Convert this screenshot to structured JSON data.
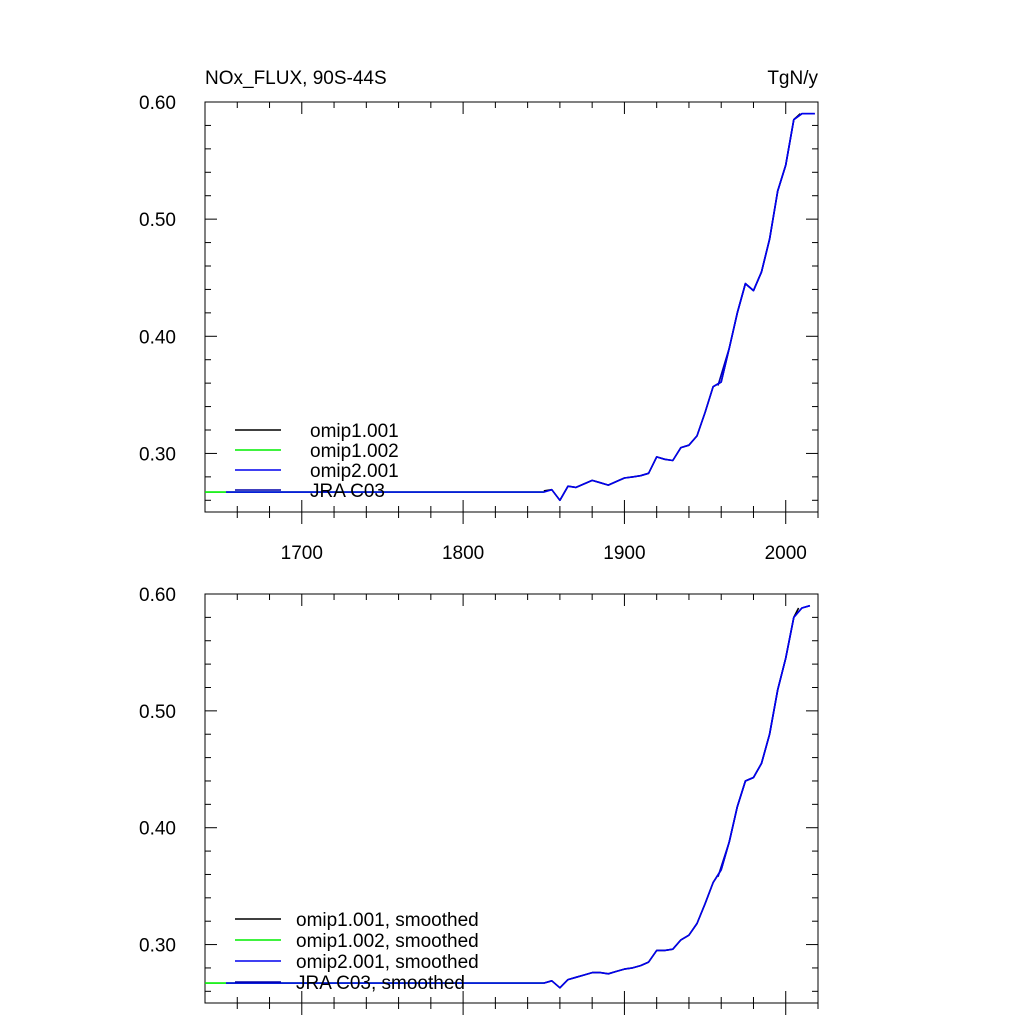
{
  "header": {
    "title": "NOx_FLUX, 90S-44S",
    "units": "TgN/y"
  },
  "colors": {
    "omip1_001": "#000000",
    "omip1_002": "#00ee00",
    "omip2_001": "#0000ee",
    "jra_c03": "#0000aa"
  },
  "chart_data": [
    {
      "type": "line",
      "panel": "top",
      "title": "NOx_FLUX, 90S-44S",
      "units_label": "TgN/y",
      "xlabel": "",
      "ylabel": "",
      "xlim": [
        1640,
        2020
      ],
      "ylim": [
        0.25,
        0.6
      ],
      "x_ticks": [
        1700,
        1800,
        1900,
        2000
      ],
      "x_tick_labels": [
        "1700",
        "1800",
        "1900",
        "2000"
      ],
      "y_ticks": [
        0.3,
        0.4,
        0.5,
        0.6
      ],
      "y_tick_labels": [
        "0.30",
        "0.40",
        "0.50",
        "0.60"
      ],
      "grid": false,
      "legend_position": "bottom-left",
      "series": [
        {
          "name": "omip1.001",
          "color": "#000000",
          "x": [
            1850,
            1855,
            1860,
            1865,
            1870,
            1875,
            1880,
            1885,
            1890,
            1895,
            1900,
            1905,
            1910,
            1915,
            1920,
            1925,
            1930,
            1935,
            1940,
            1945,
            1950,
            1955,
            1960,
            1965,
            1970,
            1975,
            1980,
            1985,
            1990,
            1995,
            2000,
            2005,
            2009
          ],
          "y": [
            0.268,
            0.269,
            0.26,
            0.272,
            0.271,
            0.274,
            0.277,
            0.275,
            0.273,
            0.276,
            0.279,
            0.28,
            0.281,
            0.283,
            0.297,
            0.295,
            0.294,
            0.305,
            0.307,
            0.315,
            0.335,
            0.357,
            0.361,
            0.39,
            0.42,
            0.445,
            0.439,
            0.455,
            0.483,
            0.524,
            0.546,
            0.585,
            0.59
          ]
        },
        {
          "name": "omip1.002",
          "color": "#00ee00",
          "x": [
            1640,
            1650,
            1660,
            1680,
            1700,
            1750,
            1800,
            1850
          ],
          "y": [
            0.267,
            0.267,
            0.267,
            0.267,
            0.267,
            0.267,
            0.267,
            0.267
          ]
        },
        {
          "name": "omip2.001",
          "color": "#0000ee",
          "x": [
            1653,
            1700,
            1750,
            1800,
            1850,
            1855,
            1860,
            1865,
            1870,
            1875,
            1880,
            1885,
            1890,
            1895,
            1900,
            1905,
            1910,
            1915,
            1920,
            1925,
            1930,
            1935,
            1940,
            1945,
            1950,
            1955,
            1960,
            1965,
            1970,
            1975,
            1980,
            1985,
            1990,
            1995,
            2000,
            2005,
            2010,
            2018
          ],
          "y": [
            0.267,
            0.267,
            0.267,
            0.267,
            0.267,
            0.269,
            0.26,
            0.272,
            0.271,
            0.274,
            0.277,
            0.275,
            0.273,
            0.276,
            0.279,
            0.28,
            0.281,
            0.283,
            0.297,
            0.295,
            0.294,
            0.305,
            0.307,
            0.315,
            0.335,
            0.357,
            0.361,
            0.39,
            0.42,
            0.445,
            0.439,
            0.455,
            0.483,
            0.524,
            0.546,
            0.585,
            0.59,
            0.59
          ]
        },
        {
          "name": "JRA C03",
          "color": "#0000aa",
          "x": [
            1958,
            1965,
            1970,
            1975,
            1980,
            1985,
            1990,
            1995,
            2000,
            2005,
            2010,
            2018
          ],
          "y": [
            0.358,
            0.39,
            0.42,
            0.445,
            0.439,
            0.455,
            0.483,
            0.524,
            0.546,
            0.585,
            0.59,
            0.59
          ]
        }
      ]
    },
    {
      "type": "line",
      "panel": "bottom",
      "title": "",
      "xlabel": "",
      "ylabel": "",
      "xlim": [
        1640,
        2020
      ],
      "ylim": [
        0.25,
        0.6
      ],
      "x_ticks": [
        1700,
        1800,
        1900,
        2000
      ],
      "x_tick_labels": [],
      "y_ticks": [
        0.3,
        0.4,
        0.5,
        0.6
      ],
      "y_tick_labels": [
        "0.30",
        "0.40",
        "0.50",
        "0.60"
      ],
      "grid": false,
      "legend_position": "bottom-left",
      "series": [
        {
          "name": "omip1.001, smoothed",
          "color": "#000000",
          "x": [
            1850,
            1855,
            1860,
            1865,
            1870,
            1875,
            1880,
            1885,
            1890,
            1895,
            1900,
            1905,
            1910,
            1915,
            1920,
            1925,
            1930,
            1935,
            1940,
            1945,
            1950,
            1955,
            1960,
            1965,
            1970,
            1975,
            1980,
            1985,
            1990,
            1995,
            2000,
            2005,
            2008
          ],
          "y": [
            0.267,
            0.269,
            0.263,
            0.27,
            0.272,
            0.274,
            0.276,
            0.276,
            0.275,
            0.277,
            0.279,
            0.28,
            0.282,
            0.285,
            0.295,
            0.295,
            0.296,
            0.304,
            0.308,
            0.318,
            0.335,
            0.353,
            0.364,
            0.388,
            0.418,
            0.44,
            0.443,
            0.455,
            0.48,
            0.518,
            0.545,
            0.58,
            0.588
          ]
        },
        {
          "name": "omip1.002, smoothed",
          "color": "#00ee00",
          "x": [
            1640,
            1650,
            1660,
            1680,
            1700,
            1750,
            1800,
            1850
          ],
          "y": [
            0.267,
            0.267,
            0.267,
            0.267,
            0.267,
            0.267,
            0.267,
            0.267
          ]
        },
        {
          "name": "omip2.001, smoothed",
          "color": "#0000ee",
          "x": [
            1653,
            1700,
            1750,
            1800,
            1850,
            1855,
            1860,
            1865,
            1870,
            1875,
            1880,
            1885,
            1890,
            1895,
            1900,
            1905,
            1910,
            1915,
            1920,
            1925,
            1930,
            1935,
            1940,
            1945,
            1950,
            1955,
            1960,
            1965,
            1970,
            1975,
            1980,
            1985,
            1990,
            1995,
            2000,
            2005,
            2010,
            2015
          ],
          "y": [
            0.267,
            0.267,
            0.267,
            0.267,
            0.267,
            0.269,
            0.263,
            0.27,
            0.272,
            0.274,
            0.276,
            0.276,
            0.275,
            0.277,
            0.279,
            0.28,
            0.282,
            0.285,
            0.295,
            0.295,
            0.296,
            0.304,
            0.308,
            0.318,
            0.335,
            0.353,
            0.364,
            0.388,
            0.418,
            0.44,
            0.443,
            0.455,
            0.48,
            0.518,
            0.545,
            0.58,
            0.588,
            0.59
          ]
        },
        {
          "name": "JRA C03, smoothed",
          "color": "#0000aa",
          "x": [
            1958,
            1965,
            1970,
            1975,
            1980,
            1985,
            1990,
            1995,
            2000,
            2005,
            2010,
            2015
          ],
          "y": [
            0.358,
            0.388,
            0.418,
            0.44,
            0.443,
            0.455,
            0.48,
            0.518,
            0.545,
            0.58,
            0.588,
            0.59
          ]
        }
      ]
    }
  ]
}
